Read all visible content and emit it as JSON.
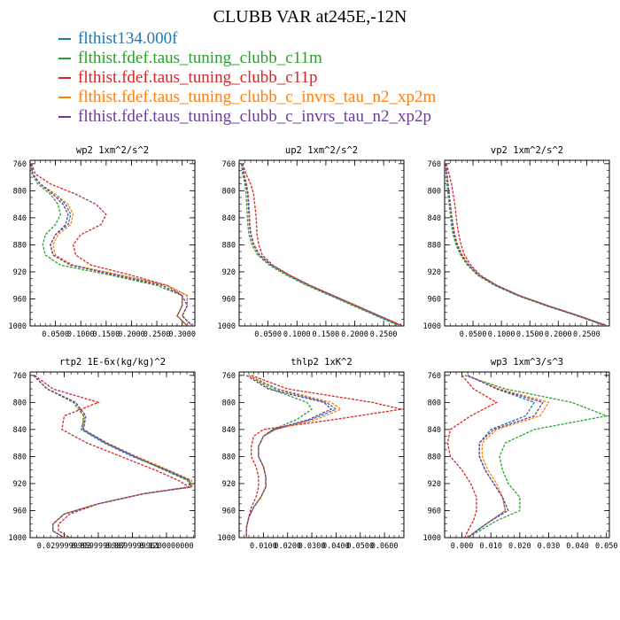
{
  "title": "CLUBB VAR at245E,-12N",
  "series": [
    {
      "name": "flthist134.000f",
      "color": "#1f77b4"
    },
    {
      "name": "flthist.fdef.taus_tuning_clubb_c11m",
      "color": "#2ca02c"
    },
    {
      "name": "flthist.fdef.taus_tuning_clubb_c11p",
      "color": "#d62728"
    },
    {
      "name": "flthist.fdef.taus_tuning_clubb_c_invrs_tau_n2_xp2m",
      "color": "#ff7f0e"
    },
    {
      "name": "flthist.fdef.taus_tuning_clubb_c_invrs_tau_n2_xp2p",
      "color": "#6a3d9a"
    }
  ],
  "chart_data": [
    {
      "type": "line",
      "title": "wp2  1xm^2/s^2",
      "ylim": [
        1000,
        755
      ],
      "yticks": [
        760,
        800,
        840,
        880,
        920,
        960,
        1000
      ],
      "xlim": [
        0,
        0.325
      ],
      "xticks": [
        0.05,
        0.1,
        0.15,
        0.2,
        0.25,
        0.3
      ],
      "xticklabels": [
        "0.0500",
        "0.1000",
        "0.1500",
        "0.2000",
        "0.2500",
        "0.3000"
      ],
      "y": [
        760,
        775,
        790,
        805,
        820,
        835,
        850,
        865,
        880,
        895,
        910,
        925,
        940,
        955,
        970,
        985,
        1000
      ],
      "series": [
        {
          "values": [
            0.002,
            0.005,
            0.02,
            0.05,
            0.07,
            0.08,
            0.075,
            0.05,
            0.04,
            0.045,
            0.08,
            0.18,
            0.27,
            0.31,
            0.31,
            0.3,
            0.32
          ]
        },
        {
          "values": [
            0.002,
            0.004,
            0.015,
            0.04,
            0.055,
            0.06,
            0.05,
            0.03,
            0.025,
            0.03,
            0.06,
            0.16,
            0.25,
            0.3,
            0.3,
            0.29,
            0.31
          ]
        },
        {
          "values": [
            0.003,
            0.01,
            0.04,
            0.09,
            0.13,
            0.15,
            0.14,
            0.1,
            0.085,
            0.09,
            0.12,
            0.2,
            0.27,
            0.3,
            0.3,
            0.29,
            0.31
          ]
        },
        {
          "values": [
            0.002,
            0.005,
            0.02,
            0.05,
            0.075,
            0.085,
            0.08,
            0.055,
            0.045,
            0.05,
            0.085,
            0.18,
            0.27,
            0.31,
            0.31,
            0.3,
            0.32
          ]
        },
        {
          "values": [
            0.002,
            0.005,
            0.02,
            0.045,
            0.065,
            0.075,
            0.07,
            0.05,
            0.04,
            0.045,
            0.08,
            0.17,
            0.26,
            0.3,
            0.31,
            0.3,
            0.32
          ]
        }
      ]
    },
    {
      "type": "line",
      "title": "up2  1xm^2/s^2",
      "ylim": [
        1000,
        755
      ],
      "yticks": [
        760,
        800,
        840,
        880,
        920,
        960,
        1000
      ],
      "xlim": [
        0,
        0.285
      ],
      "xticks": [
        0.05,
        0.1,
        0.15,
        0.2,
        0.25
      ],
      "xticklabels": [
        "0.0500",
        "0.1000",
        "0.1500",
        "0.2000",
        "0.2500"
      ],
      "y": [
        760,
        775,
        790,
        805,
        820,
        835,
        850,
        865,
        880,
        895,
        910,
        925,
        940,
        955,
        970,
        985,
        1000
      ],
      "series": [
        {
          "values": [
            0.005,
            0.008,
            0.012,
            0.015,
            0.016,
            0.017,
            0.018,
            0.02,
            0.025,
            0.035,
            0.055,
            0.085,
            0.12,
            0.16,
            0.2,
            0.24,
            0.28
          ]
        },
        {
          "values": [
            0.004,
            0.006,
            0.01,
            0.012,
            0.013,
            0.014,
            0.015,
            0.017,
            0.022,
            0.032,
            0.052,
            0.082,
            0.117,
            0.157,
            0.197,
            0.237,
            0.277
          ]
        },
        {
          "values": [
            0.006,
            0.012,
            0.02,
            0.025,
            0.027,
            0.029,
            0.03,
            0.031,
            0.034,
            0.04,
            0.058,
            0.088,
            0.123,
            0.163,
            0.203,
            0.243,
            0.283
          ]
        },
        {
          "values": [
            0.005,
            0.009,
            0.013,
            0.016,
            0.017,
            0.018,
            0.019,
            0.021,
            0.026,
            0.036,
            0.056,
            0.086,
            0.121,
            0.161,
            0.201,
            0.241,
            0.281
          ]
        },
        {
          "values": [
            0.005,
            0.008,
            0.012,
            0.015,
            0.016,
            0.017,
            0.018,
            0.02,
            0.025,
            0.035,
            0.056,
            0.087,
            0.122,
            0.162,
            0.202,
            0.242,
            0.282
          ]
        }
      ]
    },
    {
      "type": "line",
      "title": "vp2  1xm^2/s^2",
      "ylim": [
        1000,
        755
      ],
      "yticks": [
        760,
        800,
        840,
        880,
        920,
        960,
        1000
      ],
      "xlim": [
        0,
        0.29
      ],
      "xticks": [
        0.05,
        0.1,
        0.15,
        0.2,
        0.25
      ],
      "xticklabels": [
        "0.0500",
        "0.1000",
        "0.1500",
        "0.2000",
        "0.2500"
      ],
      "y": [
        760,
        775,
        790,
        805,
        820,
        835,
        850,
        865,
        880,
        895,
        910,
        925,
        940,
        955,
        970,
        985,
        1000
      ],
      "series": [
        {
          "values": [
            0.002,
            0.004,
            0.006,
            0.008,
            0.01,
            0.012,
            0.014,
            0.017,
            0.022,
            0.03,
            0.042,
            0.06,
            0.09,
            0.13,
            0.18,
            0.235,
            0.285
          ]
        },
        {
          "values": [
            0.002,
            0.003,
            0.004,
            0.006,
            0.008,
            0.01,
            0.012,
            0.015,
            0.02,
            0.028,
            0.04,
            0.058,
            0.088,
            0.128,
            0.178,
            0.233,
            0.283
          ]
        },
        {
          "values": [
            0.003,
            0.008,
            0.012,
            0.015,
            0.018,
            0.02,
            0.022,
            0.025,
            0.029,
            0.035,
            0.046,
            0.063,
            0.092,
            0.132,
            0.182,
            0.237,
            0.287
          ]
        },
        {
          "values": [
            0.002,
            0.004,
            0.006,
            0.008,
            0.01,
            0.012,
            0.015,
            0.018,
            0.023,
            0.031,
            0.043,
            0.061,
            0.091,
            0.131,
            0.181,
            0.236,
            0.286
          ]
        },
        {
          "values": [
            0.002,
            0.004,
            0.006,
            0.008,
            0.01,
            0.012,
            0.014,
            0.017,
            0.022,
            0.03,
            0.042,
            0.061,
            0.091,
            0.131,
            0.181,
            0.236,
            0.286
          ]
        }
      ]
    },
    {
      "type": "line",
      "title": "rtp2  1E-6x(kg/kg)^2",
      "ylim": [
        1000,
        755
      ],
      "yticks": [
        760,
        800,
        840,
        880,
        920,
        960,
        1000
      ],
      "xlim": [
        0.0,
        0.145
      ],
      "xticks": [
        0.03,
        0.06,
        0.09,
        0.12
      ],
      "xticklabels": [
        "0.0299999993",
        "0.0599999987",
        "0.0899999961",
        "0.1200000000"
      ],
      "y": [
        760,
        780,
        800,
        820,
        840,
        860,
        880,
        900,
        915,
        925,
        935,
        950,
        965,
        980,
        990,
        1000
      ],
      "series": [
        {
          "values": [
            0.003,
            0.015,
            0.04,
            0.048,
            0.045,
            0.065,
            0.09,
            0.12,
            0.14,
            0.14,
            0.1,
            0.06,
            0.03,
            0.02,
            0.02,
            0.03
          ]
        },
        {
          "values": [
            0.003,
            0.015,
            0.038,
            0.047,
            0.046,
            0.066,
            0.092,
            0.118,
            0.138,
            0.142,
            0.1,
            0.06,
            0.03,
            0.02,
            0.02,
            0.03
          ]
        },
        {
          "values": [
            0.004,
            0.02,
            0.06,
            0.03,
            0.028,
            0.05,
            0.08,
            0.11,
            0.13,
            0.14,
            0.1,
            0.06,
            0.035,
            0.025,
            0.025,
            0.035
          ]
        },
        {
          "values": [
            0.003,
            0.015,
            0.04,
            0.048,
            0.047,
            0.068,
            0.094,
            0.122,
            0.142,
            0.143,
            0.1,
            0.06,
            0.03,
            0.02,
            0.02,
            0.03
          ]
        },
        {
          "values": [
            0.003,
            0.015,
            0.04,
            0.049,
            0.047,
            0.067,
            0.092,
            0.12,
            0.14,
            0.142,
            0.1,
            0.06,
            0.03,
            0.02,
            0.02,
            0.03
          ]
        }
      ]
    },
    {
      "type": "line",
      "title": "thlp2  1xK^2",
      "ylim": [
        1000,
        755
      ],
      "yticks": [
        760,
        800,
        840,
        880,
        920,
        960,
        1000
      ],
      "xlim": [
        0,
        0.068
      ],
      "xticks": [
        0.01,
        0.02,
        0.03,
        0.04,
        0.05,
        0.06
      ],
      "xticklabels": [
        "0.0100",
        "0.0200",
        "0.0300",
        "0.0400",
        "0.0500",
        "0.0600"
      ],
      "y": [
        760,
        780,
        800,
        810,
        825,
        840,
        850,
        865,
        880,
        895,
        910,
        925,
        940,
        955,
        970,
        985,
        1000
      ],
      "series": [
        {
          "values": [
            0.004,
            0.015,
            0.036,
            0.04,
            0.03,
            0.015,
            0.01,
            0.008,
            0.008,
            0.01,
            0.011,
            0.011,
            0.009,
            0.006,
            0.004,
            0.003,
            0.003
          ]
        },
        {
          "values": [
            0.004,
            0.013,
            0.028,
            0.03,
            0.024,
            0.014,
            0.01,
            0.008,
            0.008,
            0.01,
            0.011,
            0.011,
            0.009,
            0.006,
            0.004,
            0.003,
            0.003
          ]
        },
        {
          "values": [
            0.005,
            0.02,
            0.055,
            0.067,
            0.04,
            0.01,
            0.006,
            0.005,
            0.005,
            0.007,
            0.008,
            0.008,
            0.007,
            0.005,
            0.004,
            0.003,
            0.003
          ]
        },
        {
          "values": [
            0.004,
            0.016,
            0.038,
            0.042,
            0.032,
            0.015,
            0.01,
            0.008,
            0.008,
            0.01,
            0.011,
            0.011,
            0.009,
            0.006,
            0.004,
            0.003,
            0.003
          ]
        },
        {
          "values": [
            0.003,
            0.012,
            0.035,
            0.038,
            0.029,
            0.014,
            0.01,
            0.008,
            0.008,
            0.01,
            0.011,
            0.011,
            0.009,
            0.006,
            0.004,
            0.003,
            0.003
          ]
        }
      ]
    },
    {
      "type": "line",
      "title": "wp3  1xm^3/s^3",
      "ylim": [
        1000,
        755
      ],
      "yticks": [
        760,
        800,
        840,
        880,
        920,
        960,
        1000
      ],
      "xlim": [
        -0.006,
        0.051
      ],
      "xticks": [
        0.0,
        0.01,
        0.02,
        0.03,
        0.04,
        0.05
      ],
      "xticklabels": [
        "0.000",
        "0.010",
        "0.020",
        "0.030",
        "0.040",
        "0.050"
      ],
      "y": [
        760,
        780,
        800,
        820,
        840,
        860,
        880,
        900,
        920,
        940,
        960,
        975,
        990,
        1000
      ],
      "series": [
        {
          "values": [
            0.002,
            0.012,
            0.025,
            0.022,
            0.01,
            0.006,
            0.006,
            0.008,
            0.011,
            0.014,
            0.015,
            0.01,
            0.005,
            0.002
          ]
        },
        {
          "values": [
            0.001,
            0.015,
            0.038,
            0.05,
            0.025,
            0.015,
            0.013,
            0.014,
            0.016,
            0.02,
            0.02,
            0.012,
            0.006,
            0.002
          ]
        },
        {
          "values": [
            0.0,
            0.004,
            0.012,
            0.003,
            -0.004,
            -0.005,
            -0.004,
            0.0,
            0.003,
            0.005,
            0.005,
            0.004,
            0.002,
            0.001
          ]
        },
        {
          "values": [
            0.002,
            0.013,
            0.03,
            0.027,
            0.012,
            0.007,
            0.007,
            0.009,
            0.012,
            0.014,
            0.015,
            0.01,
            0.005,
            0.002
          ]
        },
        {
          "values": [
            0.002,
            0.012,
            0.028,
            0.025,
            0.011,
            0.006,
            0.006,
            0.008,
            0.011,
            0.014,
            0.016,
            0.01,
            0.005,
            0.002
          ]
        }
      ]
    }
  ]
}
